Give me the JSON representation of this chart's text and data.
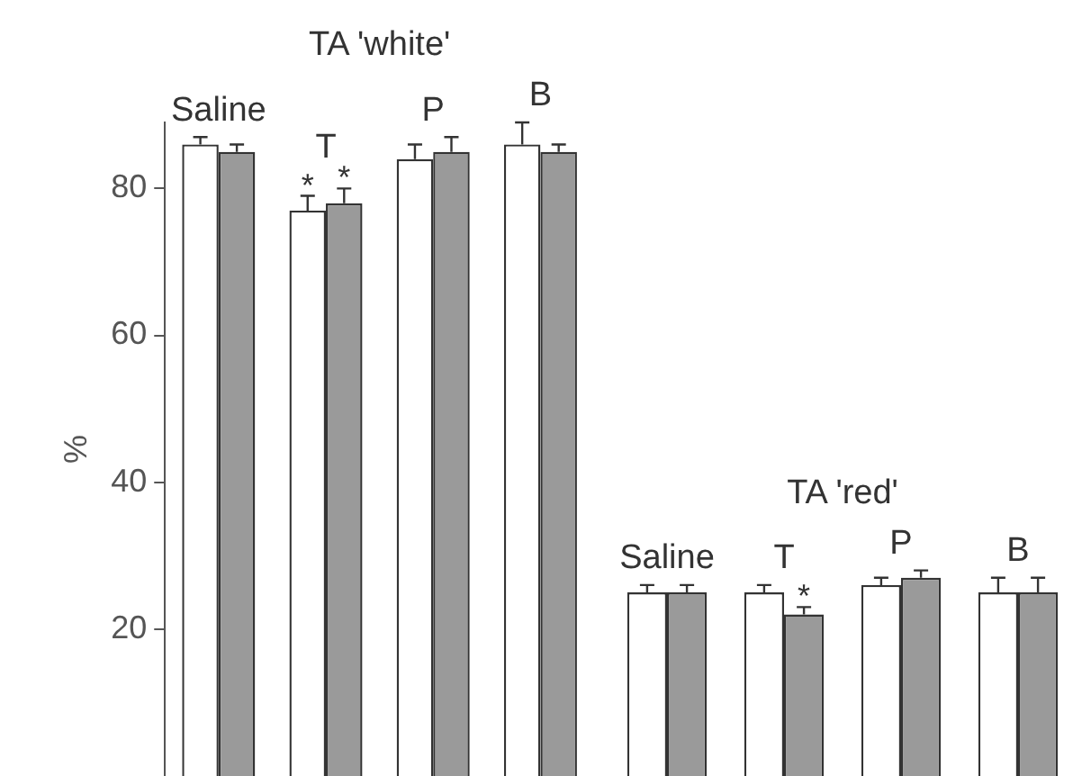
{
  "chart_data": [
    {
      "type": "bar",
      "title": "TA 'white'",
      "ylabel": "%",
      "categories": [
        "Saline",
        "T",
        "P",
        "B"
      ],
      "ylim": [
        0,
        89
      ],
      "yticks": [
        20,
        40,
        60,
        80
      ],
      "series": [
        {
          "color": "#ffffff",
          "values": [
            86,
            77,
            84,
            86
          ],
          "errors": [
            1,
            2,
            2,
            3
          ]
        },
        {
          "color": "#9a9a9a",
          "values": [
            85,
            78,
            85,
            85
          ],
          "errors": [
            1,
            2,
            2,
            1
          ]
        }
      ],
      "annotations": [
        {
          "text": "*",
          "x": "T",
          "y": 77
        },
        {
          "text": "*",
          "x": "T",
          "y": 78
        }
      ]
    },
    {
      "type": "bar",
      "title": "TA 'red'",
      "categories": [
        "Saline",
        "T",
        "P",
        "B"
      ],
      "ylim": [
        0,
        80
      ],
      "yticks": [
        20,
        40,
        60,
        80
      ],
      "tick_labels": false,
      "series": [
        {
          "color": "#ffffff",
          "values": [
            25,
            25,
            26,
            25
          ],
          "errors": [
            1,
            1,
            1,
            2
          ]
        },
        {
          "color": "#9a9a9a",
          "values": [
            25,
            22,
            27,
            25
          ],
          "errors": [
            1,
            1,
            1,
            2
          ]
        }
      ],
      "annotations": [
        {
          "text": "*",
          "x": "T",
          "y": 22
        }
      ]
    }
  ]
}
